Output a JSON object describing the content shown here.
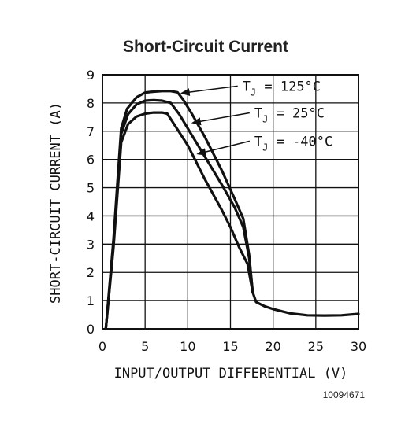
{
  "chart_data": {
    "type": "line",
    "title": "Short-Circuit Current",
    "xlabel": "INPUT/OUTPUT DIFFERENTIAL (V)",
    "ylabel": "SHORT-CIRCUIT CURRENT (A)",
    "xlim": [
      0,
      30
    ],
    "ylim": [
      0,
      9
    ],
    "xticks": [
      0,
      5,
      10,
      15,
      20,
      25,
      30
    ],
    "yticks": [
      0,
      1,
      2,
      3,
      4,
      5,
      6,
      7,
      8,
      9
    ],
    "grid": true,
    "series": [
      {
        "name": "T_J = 125°C",
        "label_main": "T",
        "label_sub": "J",
        "label_value": " = 125°C",
        "x": [
          0.4,
          1.3,
          2.2,
          2.9,
          4.0,
          5.0,
          6.0,
          7.0,
          8.0,
          8.8,
          9.5,
          10.5,
          12.0,
          14.0,
          15.5,
          16.5,
          17.2,
          17.6,
          18.0,
          19.0,
          20.0,
          22.0,
          24.0,
          26.0,
          28.0,
          30.0
        ],
        "y": [
          0.0,
          3.2,
          7.1,
          7.8,
          8.2,
          8.37,
          8.4,
          8.42,
          8.42,
          8.38,
          8.1,
          7.6,
          6.8,
          5.6,
          4.6,
          3.9,
          2.6,
          1.3,
          0.95,
          0.8,
          0.7,
          0.55,
          0.48,
          0.47,
          0.48,
          0.53
        ]
      },
      {
        "name": "T_J = 25°C",
        "label_main": "T",
        "label_sub": "J",
        "label_value": " = 25°C",
        "x": [
          0.4,
          1.3,
          2.2,
          3.0,
          4.0,
          5.0,
          6.0,
          7.0,
          8.0,
          9.0,
          10.0,
          12.0,
          14.0,
          15.5,
          16.5,
          17.2,
          17.6
        ],
        "y": [
          0.0,
          3.0,
          6.9,
          7.6,
          7.95,
          8.08,
          8.1,
          8.08,
          8.0,
          7.6,
          7.1,
          6.1,
          5.1,
          4.3,
          3.6,
          2.5,
          1.3
        ]
      },
      {
        "name": "T_J = -40°C",
        "label_main": "T",
        "label_sub": "J",
        "label_value": " = -40°C",
        "x": [
          0.4,
          1.3,
          2.2,
          3.0,
          4.0,
          5.0,
          6.0,
          7.0,
          7.6,
          8.5,
          10.0,
          12.0,
          14.0,
          15.0,
          16.0,
          17.0,
          17.6
        ],
        "y": [
          0.0,
          2.9,
          6.6,
          7.25,
          7.52,
          7.62,
          7.66,
          7.66,
          7.62,
          7.2,
          6.5,
          5.3,
          4.2,
          3.6,
          2.9,
          2.3,
          1.3
        ]
      }
    ],
    "annotations": [
      {
        "series": 0,
        "arrow_to": [
          9.3,
          8.35
        ],
        "label_at": [
          16.4,
          8.6
        ]
      },
      {
        "series": 1,
        "arrow_to": [
          10.6,
          7.3
        ],
        "label_at": [
          17.8,
          7.65
        ]
      },
      {
        "series": 2,
        "arrow_to": [
          11.2,
          6.2
        ],
        "label_at": [
          17.8,
          6.65
        ]
      }
    ],
    "figure_id": "10094671"
  },
  "colors": {
    "line": "#111111",
    "grid": "#111111"
  }
}
